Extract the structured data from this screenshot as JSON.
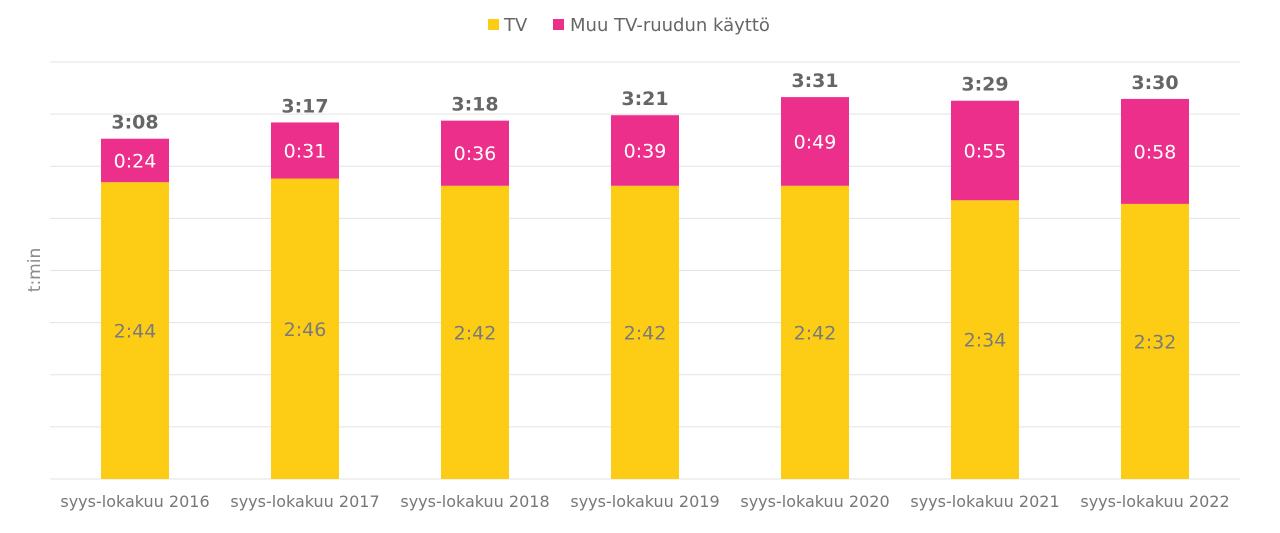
{
  "chart_data": {
    "type": "bar",
    "stacked": true,
    "title": "",
    "xlabel": "",
    "ylabel": "t:min",
    "ylim_minutes": [
      0,
      230.4
    ],
    "grid_step_minutes": 28.8,
    "grid": true,
    "legend_position": "top",
    "categories": [
      "syys-lokakuu 2016",
      "syys-lokakuu 2017",
      "syys-lokakuu 2018",
      "syys-lokakuu 2019",
      "syys-lokakuu 2020",
      "syys-lokakuu 2021",
      "syys-lokakuu 2022"
    ],
    "series": [
      {
        "name": "TV",
        "color": "#FDCD16",
        "values": [
          164,
          166,
          162,
          162,
          162,
          154,
          152
        ],
        "labels": [
          "2:44",
          "2:46",
          "2:42",
          "2:42",
          "2:42",
          "2:34",
          "2:32"
        ]
      },
      {
        "name": "Muu TV-ruudun käyttö",
        "color": "#EC2F8A",
        "values": [
          24,
          31,
          36,
          39,
          49,
          55,
          58
        ],
        "labels": [
          "0:24",
          "0:31",
          "0:36",
          "0:39",
          "0:49",
          "0:55",
          "0:58"
        ]
      }
    ],
    "totals": {
      "values": [
        188,
        197,
        198,
        201,
        211,
        209,
        210
      ],
      "labels": [
        "3:08",
        "3:17",
        "3:18",
        "3:21",
        "3:31",
        "3:29",
        "3:30"
      ]
    }
  }
}
